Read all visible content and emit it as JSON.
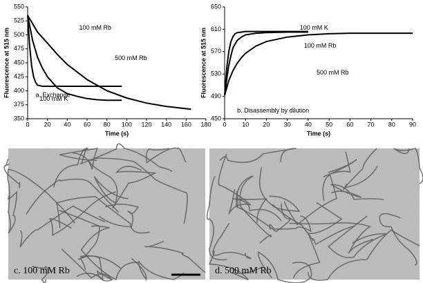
{
  "chart_data": [
    {
      "type": "line",
      "annotation": "a. Exchange",
      "xlabel": "Time (s)",
      "ylabel": "Fluorescence at 515 nm",
      "xlim": [
        0,
        180
      ],
      "xticks": [
        0,
        20,
        40,
        60,
        80,
        100,
        120,
        140,
        160,
        180
      ],
      "ylim": [
        350,
        550
      ],
      "yticks": [
        350,
        375,
        400,
        425,
        450,
        475,
        500,
        525,
        550
      ],
      "series": [
        {
          "name": "100 mM K",
          "color": "#000000",
          "x": [
            0,
            2,
            4,
            6,
            8,
            10,
            15,
            20,
            30,
            40,
            60,
            80,
            95
          ],
          "values": [
            535,
            480,
            445,
            425,
            415,
            410,
            408,
            408,
            408,
            408,
            408,
            408,
            408
          ]
        },
        {
          "name": "100 mM Rb",
          "color": "#000000",
          "x": [
            0,
            5,
            10,
            15,
            20,
            30,
            40,
            50,
            60,
            70,
            80,
            95
          ],
          "values": [
            535,
            490,
            460,
            440,
            425,
            405,
            395,
            390,
            386,
            384,
            383,
            383
          ]
        },
        {
          "name": "500 mM Rb",
          "color": "#000000",
          "x": [
            0,
            10,
            20,
            30,
            40,
            60,
            80,
            100,
            120,
            140,
            165
          ],
          "values": [
            535,
            505,
            485,
            465,
            447,
            420,
            400,
            387,
            378,
            372,
            367
          ]
        }
      ]
    },
    {
      "type": "line",
      "annotation": "b. Disassembly by dilution",
      "xlabel": "Time (s)",
      "ylabel": "Fluorescence at 515 nm",
      "xlim": [
        0,
        90
      ],
      "xticks": [
        0,
        10,
        20,
        30,
        40,
        50,
        60,
        70,
        80,
        90
      ],
      "ylim": [
        450,
        650
      ],
      "yticks": [
        450,
        490,
        530,
        570,
        610,
        650
      ],
      "series": [
        {
          "name": "100 mM K",
          "color": "#000000",
          "x": [
            0,
            1,
            2,
            3,
            4,
            5,
            6,
            8,
            10,
            15,
            20,
            30,
            40
          ],
          "values": [
            492,
            540,
            570,
            588,
            597,
            602,
            604,
            605,
            606,
            606,
            606,
            606,
            606
          ]
        },
        {
          "name": "100 mM Rb",
          "color": "#000000",
          "x": [
            0,
            1,
            2,
            3,
            4,
            6,
            8,
            10,
            15,
            20,
            30,
            40
          ],
          "values": [
            492,
            520,
            545,
            563,
            577,
            590,
            596,
            600,
            603,
            604,
            605,
            605
          ]
        },
        {
          "name": "500 mM Rb",
          "color": "#000000",
          "x": [
            0,
            2,
            4,
            6,
            8,
            10,
            15,
            20,
            30,
            40,
            50,
            60,
            70,
            80,
            90
          ],
          "values": [
            492,
            518,
            536,
            549,
            559,
            567,
            580,
            588,
            596,
            600,
            602,
            603,
            603,
            603,
            603
          ]
        }
      ]
    }
  ],
  "micrographs": [
    {
      "label": "c. 100 mM Rb"
    },
    {
      "label": "d. 500 mM Rb"
    }
  ]
}
